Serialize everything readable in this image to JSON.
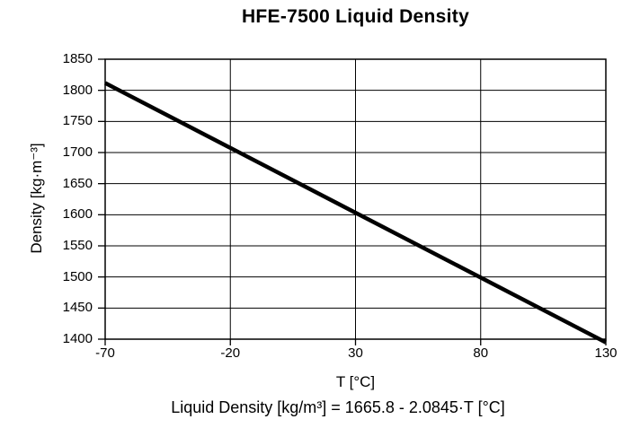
{
  "chart_data": {
    "type": "line",
    "title": "HFE-7500 Liquid Density",
    "xlabel": "T [°C]",
    "ylabel": "Density [kg·m⁻³]",
    "xlim": [
      -70,
      130
    ],
    "ylim": [
      1400,
      1850
    ],
    "xticks": [
      -70,
      -20,
      30,
      80,
      130
    ],
    "yticks": [
      1400,
      1450,
      1500,
      1550,
      1600,
      1650,
      1700,
      1750,
      1800,
      1850
    ],
    "grid": true,
    "legend": false,
    "series": [
      {
        "name": "Liquid Density",
        "x": [
          -70,
          130
        ],
        "y": [
          1811.7,
          1394.8
        ]
      }
    ],
    "equation": "Liquid Density [kg/m³] = 1665.8 - 2.0845·T [°C]",
    "equation_coefficients": {
      "intercept": 1665.8,
      "slope": -2.0845
    },
    "line_color": "#000000",
    "line_width": 4.5,
    "axis_color": "#000000",
    "grid_color": "#000000",
    "background_color": "#ffffff"
  }
}
